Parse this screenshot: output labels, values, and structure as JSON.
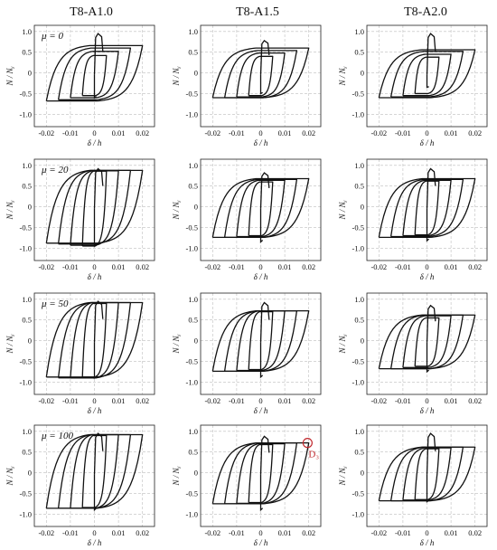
{
  "columns": [
    "T8-A1.0",
    "T8-A1.5",
    "T8-A2.0"
  ],
  "rows": [
    "μ = 0",
    "μ = 20",
    "μ = 50",
    "μ = 100"
  ],
  "axes": {
    "xlabel": "δ / h",
    "ylabel": "N / Nᵧ",
    "xticks": [
      "-0.02",
      "-0.01",
      "0",
      "0.01",
      "0.02"
    ],
    "yticks": [
      "1.0",
      "0.5",
      "0",
      "-0.5",
      "-1.0"
    ],
    "grid": "dashed"
  },
  "annotation": {
    "label": "D₃",
    "panel": "μ = 100 / T8-A1.5",
    "color": "#c0282d"
  },
  "chart_data": {
    "type": "line",
    "description_of_grid": "4 rows (μ) × 3 columns (specimen) of hysteresis loops, N/Ny versus δ/h",
    "xlim": [
      -0.025,
      0.025
    ],
    "ylim": [
      -1.3,
      1.15
    ],
    "cycle_amplitudes": [
      0.005,
      0.01,
      0.015,
      0.02
    ],
    "panels": [
      {
        "row": "μ = 0",
        "col": "T8-A1.0",
        "peak_comp": 0.95,
        "top": [
          0.42,
          0.52,
          0.6,
          0.66
        ],
        "bottom": [
          -0.55,
          -0.6,
          -0.65,
          -0.68
        ],
        "spike_neg": -0.6
      },
      {
        "row": "μ = 0",
        "col": "T8-A1.5",
        "peak_comp": 0.78,
        "top": [
          0.4,
          0.48,
          0.54,
          0.6
        ],
        "bottom": [
          -0.55,
          -0.58,
          -0.6,
          -0.6
        ],
        "spike_neg": -0.5
      },
      {
        "row": "μ = 0",
        "col": "T8-A2.0",
        "peak_comp": 0.95,
        "top": [
          0.38,
          0.45,
          0.52,
          0.56
        ],
        "bottom": [
          -0.5,
          -0.55,
          -0.58,
          -0.6
        ],
        "spike_neg": -0.35
      },
      {
        "row": "μ = 20",
        "col": "T8-A1.0",
        "peak_comp": 0.92,
        "top": [
          0.86,
          0.87,
          0.88,
          0.88
        ],
        "bottom": [
          -0.95,
          -0.93,
          -0.9,
          -0.88
        ],
        "spike_neg": -0.95
      },
      {
        "row": "μ = 20",
        "col": "T8-A1.5",
        "peak_comp": 0.82,
        "top": [
          0.6,
          0.64,
          0.66,
          0.68
        ],
        "bottom": [
          -0.7,
          -0.72,
          -0.74,
          -0.74
        ],
        "spike_neg": -0.85
      },
      {
        "row": "μ = 20",
        "col": "T8-A2.0",
        "peak_comp": 0.92,
        "top": [
          0.62,
          0.64,
          0.66,
          0.68
        ],
        "bottom": [
          -0.68,
          -0.7,
          -0.72,
          -0.74
        ],
        "spike_neg": -0.82
      },
      {
        "row": "μ = 50",
        "col": "T8-A1.0",
        "peak_comp": 0.95,
        "top": [
          0.9,
          0.92,
          0.92,
          0.92
        ],
        "bottom": [
          -0.88,
          -0.9,
          -0.9,
          -0.88
        ],
        "spike_neg": -0.9
      },
      {
        "row": "μ = 50",
        "col": "T8-A1.5",
        "peak_comp": 0.92,
        "top": [
          0.7,
          0.72,
          0.72,
          0.72
        ],
        "bottom": [
          -0.7,
          -0.72,
          -0.74,
          -0.74
        ],
        "spike_neg": -0.88
      },
      {
        "row": "μ = 50",
        "col": "T8-A2.0",
        "peak_comp": 0.85,
        "top": [
          0.55,
          0.6,
          0.62,
          0.62
        ],
        "bottom": [
          -0.62,
          -0.65,
          -0.68,
          -0.68
        ],
        "spike_neg": -0.75
      },
      {
        "row": "μ = 100",
        "col": "T8-A1.0",
        "peak_comp": 0.95,
        "top": [
          0.9,
          0.92,
          0.92,
          0.92
        ],
        "bottom": [
          -0.84,
          -0.86,
          -0.86,
          -0.86
        ],
        "spike_neg": -0.9
      },
      {
        "row": "μ = 100",
        "col": "T8-A1.5",
        "peak_comp": 0.88,
        "top": [
          0.68,
          0.7,
          0.72,
          0.72
        ],
        "bottom": [
          -0.72,
          -0.74,
          -0.75,
          -0.75
        ],
        "spike_neg": -0.9
      },
      {
        "row": "μ = 100",
        "col": "T8-A2.0",
        "peak_comp": 0.95,
        "top": [
          0.58,
          0.6,
          0.62,
          0.62
        ],
        "bottom": [
          -0.65,
          -0.66,
          -0.68,
          -0.68
        ],
        "spike_neg": -0.7
      }
    ]
  }
}
